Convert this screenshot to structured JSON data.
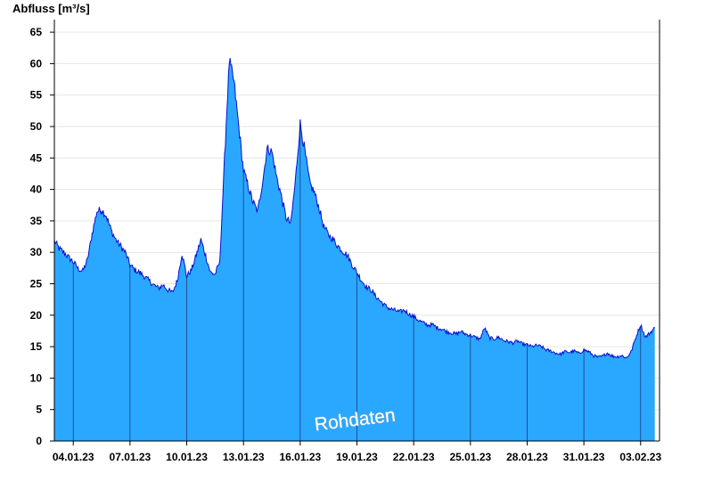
{
  "chart_data": {
    "type": "area",
    "ylabel": "Abfluss [m³/s]",
    "watermark": "Rohdaten",
    "ylim": [
      0,
      67
    ],
    "yticks": [
      0,
      5,
      10,
      15,
      20,
      25,
      30,
      35,
      40,
      45,
      50,
      55,
      60,
      65
    ],
    "xlim": [
      "2023-01-03",
      "2023-02-03"
    ],
    "xticks": [
      "04.01.23",
      "07.01.23",
      "10.01.23",
      "13.01.23",
      "16.01.23",
      "19.01.23",
      "22.01.23",
      "25.01.23",
      "28.01.23",
      "31.01.23",
      "03.02.23"
    ],
    "grid": true,
    "colors": {
      "fill": "#2aa8ff",
      "line": "#0a10c8",
      "grid": "#e6e6e6",
      "divider": "#1a3a80",
      "axis": "#000000"
    },
    "series": [
      {
        "points": [
          [
            "2023-01-03T00:00",
            31.8
          ],
          [
            "2023-01-03T06:00",
            30.6
          ],
          [
            "2023-01-03T12:00",
            30.0
          ],
          [
            "2023-01-03T18:00",
            29.2
          ],
          [
            "2023-01-04T00:00",
            28.5
          ],
          [
            "2023-01-04T06:00",
            27.4
          ],
          [
            "2023-01-04T12:00",
            27.0
          ],
          [
            "2023-01-04T18:00",
            28.8
          ],
          [
            "2023-01-05T00:00",
            33.0
          ],
          [
            "2023-01-05T06:00",
            36.5
          ],
          [
            "2023-01-05T12:00",
            36.8
          ],
          [
            "2023-01-05T18:00",
            35.8
          ],
          [
            "2023-01-06T00:00",
            33.5
          ],
          [
            "2023-01-06T06:00",
            32.0
          ],
          [
            "2023-01-06T12:00",
            31.0
          ],
          [
            "2023-01-06T18:00",
            30.0
          ],
          [
            "2023-01-07T00:00",
            28.0
          ],
          [
            "2023-01-07T06:00",
            27.2
          ],
          [
            "2023-01-07T12:00",
            26.8
          ],
          [
            "2023-01-07T18:00",
            26.2
          ],
          [
            "2023-01-08T00:00",
            25.5
          ],
          [
            "2023-01-08T06:00",
            24.8
          ],
          [
            "2023-01-08T12:00",
            24.3
          ],
          [
            "2023-01-08T18:00",
            24.8
          ],
          [
            "2023-01-09T00:00",
            24.0
          ],
          [
            "2023-01-09T06:00",
            23.6
          ],
          [
            "2023-01-09T12:00",
            25.5
          ],
          [
            "2023-01-09T18:00",
            29.8
          ],
          [
            "2023-01-10T00:00",
            26.2
          ],
          [
            "2023-01-10T06:00",
            27.2
          ],
          [
            "2023-01-10T12:00",
            29.5
          ],
          [
            "2023-01-10T18:00",
            32.0
          ],
          [
            "2023-01-11T00:00",
            29.5
          ],
          [
            "2023-01-11T06:00",
            26.8
          ],
          [
            "2023-01-11T12:00",
            26.5
          ],
          [
            "2023-01-11T18:00",
            28.5
          ],
          [
            "2023-01-12T00:00",
            45.0
          ],
          [
            "2023-01-12T06:00",
            60.5
          ],
          [
            "2023-01-12T12:00",
            57.0
          ],
          [
            "2023-01-12T18:00",
            50.0
          ],
          [
            "2023-01-13T00:00",
            43.0
          ],
          [
            "2023-01-13T06:00",
            40.5
          ],
          [
            "2023-01-13T12:00",
            38.0
          ],
          [
            "2023-01-13T18:00",
            36.5
          ],
          [
            "2023-01-14T00:00",
            41.0
          ],
          [
            "2023-01-14T06:00",
            46.5
          ],
          [
            "2023-01-14T12:00",
            46.0
          ],
          [
            "2023-01-14T18:00",
            42.0
          ],
          [
            "2023-01-15T00:00",
            39.0
          ],
          [
            "2023-01-15T06:00",
            35.5
          ],
          [
            "2023-01-15T12:00",
            34.5
          ],
          [
            "2023-01-15T18:00",
            41.5
          ],
          [
            "2023-01-16T00:00",
            50.5
          ],
          [
            "2023-01-16T06:00",
            46.0
          ],
          [
            "2023-01-16T12:00",
            41.0
          ],
          [
            "2023-01-16T18:00",
            39.5
          ],
          [
            "2023-01-17T00:00",
            37.0
          ],
          [
            "2023-01-17T06:00",
            34.0
          ],
          [
            "2023-01-17T12:00",
            32.8
          ],
          [
            "2023-01-17T18:00",
            32.0
          ],
          [
            "2023-01-18T00:00",
            31.0
          ],
          [
            "2023-01-18T06:00",
            30.2
          ],
          [
            "2023-01-18T12:00",
            29.5
          ],
          [
            "2023-01-18T18:00",
            28.0
          ],
          [
            "2023-01-19T00:00",
            26.8
          ],
          [
            "2023-01-19T06:00",
            25.5
          ],
          [
            "2023-01-19T12:00",
            24.5
          ],
          [
            "2023-01-19T18:00",
            24.0
          ],
          [
            "2023-01-20T00:00",
            23.0
          ],
          [
            "2023-01-20T06:00",
            22.2
          ],
          [
            "2023-01-20T12:00",
            21.5
          ],
          [
            "2023-01-20T18:00",
            21.0
          ],
          [
            "2023-01-21T00:00",
            20.8
          ],
          [
            "2023-01-21T06:00",
            20.5
          ],
          [
            "2023-01-21T12:00",
            20.8
          ],
          [
            "2023-01-21T18:00",
            20.2
          ],
          [
            "2023-01-22T00:00",
            19.8
          ],
          [
            "2023-01-22T06:00",
            19.2
          ],
          [
            "2023-01-22T12:00",
            18.8
          ],
          [
            "2023-01-22T18:00",
            18.4
          ],
          [
            "2023-01-23T00:00",
            18.5
          ],
          [
            "2023-01-23T06:00",
            18.0
          ],
          [
            "2023-01-23T12:00",
            17.8
          ],
          [
            "2023-01-23T18:00",
            17.4
          ],
          [
            "2023-01-24T00:00",
            17.2
          ],
          [
            "2023-01-24T06:00",
            17.0
          ],
          [
            "2023-01-24T12:00",
            17.4
          ],
          [
            "2023-01-24T18:00",
            17.0
          ],
          [
            "2023-01-25T00:00",
            16.8
          ],
          [
            "2023-01-25T06:00",
            16.5
          ],
          [
            "2023-01-25T12:00",
            16.2
          ],
          [
            "2023-01-25T18:00",
            18.0
          ],
          [
            "2023-01-26T00:00",
            16.4
          ],
          [
            "2023-01-26T06:00",
            16.2
          ],
          [
            "2023-01-26T12:00",
            16.5
          ],
          [
            "2023-01-26T18:00",
            16.0
          ],
          [
            "2023-01-27T00:00",
            15.8
          ],
          [
            "2023-01-27T06:00",
            15.6
          ],
          [
            "2023-01-27T12:00",
            15.9
          ],
          [
            "2023-01-27T18:00",
            15.4
          ],
          [
            "2023-01-28T00:00",
            15.3
          ],
          [
            "2023-01-28T06:00",
            15.0
          ],
          [
            "2023-01-28T12:00",
            15.2
          ],
          [
            "2023-01-28T18:00",
            15.0
          ],
          [
            "2023-01-29T00:00",
            14.5
          ],
          [
            "2023-01-29T06:00",
            14.3
          ],
          [
            "2023-01-29T12:00",
            14.0
          ],
          [
            "2023-01-29T18:00",
            13.8
          ],
          [
            "2023-01-30T00:00",
            14.2
          ],
          [
            "2023-01-30T06:00",
            14.1
          ],
          [
            "2023-01-30T12:00",
            14.3
          ],
          [
            "2023-01-30T18:00",
            13.9
          ],
          [
            "2023-01-31T00:00",
            14.5
          ],
          [
            "2023-01-31T06:00",
            14.2
          ],
          [
            "2023-01-31T12:00",
            13.6
          ],
          [
            "2023-01-31T18:00",
            13.3
          ],
          [
            "2023-02-01T00:00",
            13.5
          ],
          [
            "2023-02-01T06:00",
            14.0
          ],
          [
            "2023-02-01T12:00",
            13.5
          ],
          [
            "2023-02-01T18:00",
            13.4
          ],
          [
            "2023-02-02T00:00",
            13.6
          ],
          [
            "2023-02-02T06:00",
            13.2
          ],
          [
            "2023-02-02T12:00",
            14.2
          ],
          [
            "2023-02-02T18:00",
            16.5
          ],
          [
            "2023-02-03T00:00",
            18.5
          ],
          [
            "2023-02-03T06:00",
            16.5
          ],
          [
            "2023-02-03T12:00",
            17.2
          ],
          [
            "2023-02-03T18:00",
            18.0
          ]
        ]
      }
    ]
  }
}
